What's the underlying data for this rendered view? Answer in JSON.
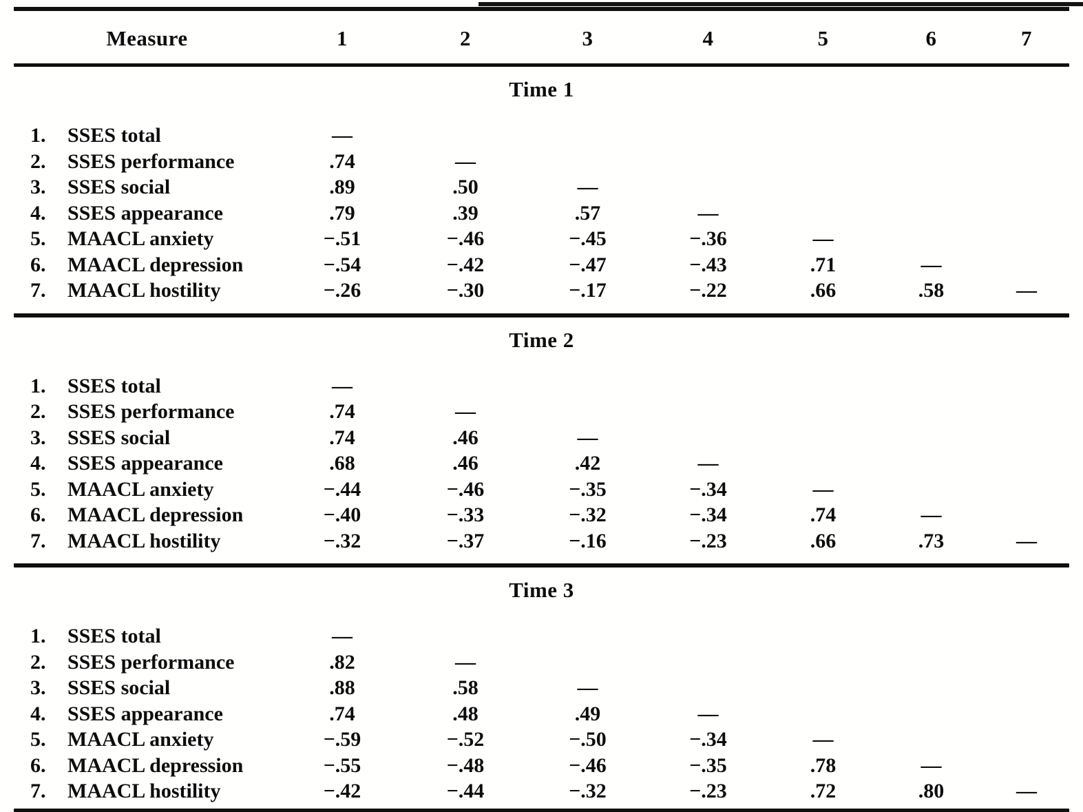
{
  "table": {
    "header": {
      "columns": [
        "Measure",
        "1",
        "2",
        "3",
        "4",
        "5",
        "6",
        "7"
      ]
    },
    "sections": [
      {
        "title": "Time 1",
        "rows": [
          {
            "num": "1.",
            "label": "SSES total",
            "values": [
              "—",
              "",
              "",
              "",
              "",
              "",
              ""
            ]
          },
          {
            "num": "2.",
            "label": "SSES performance",
            "values": [
              ".74",
              "—",
              "",
              "",
              "",
              "",
              ""
            ]
          },
          {
            "num": "3.",
            "label": "SSES social",
            "values": [
              ".89",
              ".50",
              "—",
              "",
              "",
              "",
              ""
            ]
          },
          {
            "num": "4.",
            "label": "SSES appearance",
            "values": [
              ".79",
              ".39",
              ".57",
              "—",
              "",
              "",
              ""
            ]
          },
          {
            "num": "5.",
            "label": "MAACL anxiety",
            "values": [
              "−.51",
              "−.46",
              "−.45",
              "−.36",
              "—",
              "",
              ""
            ]
          },
          {
            "num": "6.",
            "label": "MAACL depression",
            "values": [
              "−.54",
              "−.42",
              "−.47",
              "−.43",
              ".71",
              "—",
              ""
            ]
          },
          {
            "num": "7.",
            "label": "MAACL hostility",
            "values": [
              "−.26",
              "−.30",
              "−.17",
              "−.22",
              ".66",
              ".58",
              "—"
            ]
          }
        ]
      },
      {
        "title": "Time 2",
        "rows": [
          {
            "num": "1.",
            "label": "SSES total",
            "values": [
              "—",
              "",
              "",
              "",
              "",
              "",
              ""
            ]
          },
          {
            "num": "2.",
            "label": "SSES performance",
            "values": [
              ".74",
              "—",
              "",
              "",
              "",
              "",
              ""
            ]
          },
          {
            "num": "3.",
            "label": "SSES social",
            "values": [
              ".74",
              ".46",
              "—",
              "",
              "",
              "",
              ""
            ]
          },
          {
            "num": "4.",
            "label": "SSES appearance",
            "values": [
              ".68",
              ".46",
              ".42",
              "—",
              "",
              "",
              ""
            ]
          },
          {
            "num": "5.",
            "label": "MAACL anxiety",
            "values": [
              "−.44",
              "−.46",
              "−.35",
              "−.34",
              "—",
              "",
              ""
            ]
          },
          {
            "num": "6.",
            "label": "MAACL depression",
            "values": [
              "−.40",
              "−.33",
              "−.32",
              "−.34",
              ".74",
              "—",
              ""
            ]
          },
          {
            "num": "7.",
            "label": "MAACL hostility",
            "values": [
              "−.32",
              "−.37",
              "−.16",
              "−.23",
              ".66",
              ".73",
              "—"
            ]
          }
        ]
      },
      {
        "title": "Time 3",
        "rows": [
          {
            "num": "1.",
            "label": "SSES total",
            "values": [
              "—",
              "",
              "",
              "",
              "",
              "",
              ""
            ]
          },
          {
            "num": "2.",
            "label": "SSES performance",
            "values": [
              ".82",
              "—",
              "",
              "",
              "",
              "",
              ""
            ]
          },
          {
            "num": "3.",
            "label": "SSES social",
            "values": [
              ".88",
              ".58",
              "—",
              "",
              "",
              "",
              ""
            ]
          },
          {
            "num": "4.",
            "label": "SSES appearance",
            "values": [
              ".74",
              ".48",
              ".49",
              "—",
              "",
              "",
              ""
            ]
          },
          {
            "num": "5.",
            "label": "MAACL anxiety",
            "values": [
              "−.59",
              "−.52",
              "−.50",
              "−.34",
              "—",
              "",
              ""
            ]
          },
          {
            "num": "6.",
            "label": "MAACL depression",
            "values": [
              "−.55",
              "−.48",
              "−.46",
              "−.35",
              ".78",
              "—",
              ""
            ]
          },
          {
            "num": "7.",
            "label": "MAACL hostility",
            "values": [
              "−.42",
              "−.44",
              "−.32",
              "−.23",
              ".72",
              ".80",
              "—"
            ]
          }
        ]
      }
    ]
  },
  "ink_color": "#101010",
  "paper_color": "#fffffe"
}
